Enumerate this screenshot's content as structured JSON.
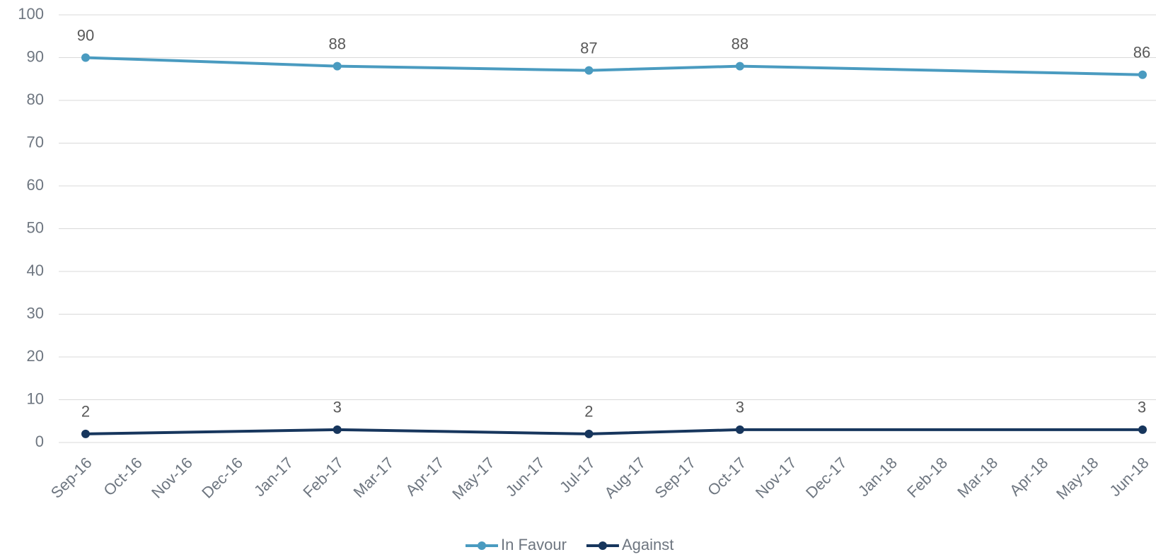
{
  "chart_data": {
    "type": "line",
    "xticks": [
      "Sep-16",
      "Oct-16",
      "Nov-16",
      "Dec-16",
      "Jan-17",
      "Feb-17",
      "Mar-17",
      "Apr-17",
      "May-17",
      "Jun-17",
      "Jul-17",
      "Aug-17",
      "Sep-17",
      "Oct-17",
      "Nov-17",
      "Dec-17",
      "Jan-18",
      "Feb-18",
      "Mar-18",
      "Apr-18",
      "May-18",
      "Jun-18"
    ],
    "x": [
      "Sep-16",
      "Feb-17",
      "Jul-17",
      "Oct-17",
      "Jun-18"
    ],
    "series": [
      {
        "name": "In Favour",
        "color": "#4a9bc0",
        "values": [
          90,
          88,
          87,
          88,
          86
        ]
      },
      {
        "name": "Against",
        "color": "#17365d",
        "values": [
          2,
          3,
          2,
          3,
          3
        ]
      }
    ],
    "ylim": [
      0,
      100
    ],
    "yticks": [
      0,
      10,
      20,
      30,
      40,
      50,
      60,
      70,
      80,
      90,
      100
    ],
    "grid": true,
    "legend": "bottom"
  }
}
